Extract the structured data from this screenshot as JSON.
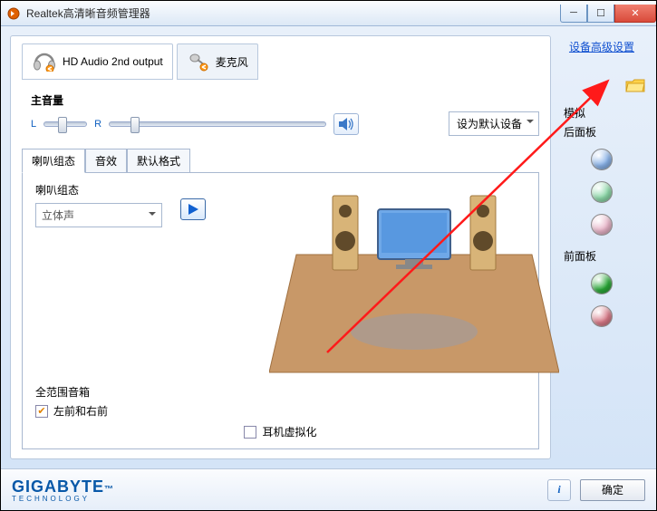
{
  "window": {
    "title": "Realtek高清晰音频管理器"
  },
  "topTabs": {
    "output": "HD Audio 2nd output",
    "mic": "麦克风"
  },
  "mainVolume": {
    "label": "主音量",
    "L": "L",
    "R": "R",
    "balancePos": 0.4,
    "mainPos": 0.1,
    "defaultDeviceBtn": "设为默认设备"
  },
  "subTabs": {
    "t1": "喇叭组态",
    "t2": "音效",
    "t3": "默认格式"
  },
  "speakerConfig": {
    "label": "喇叭组态",
    "selectValue": "立体声",
    "surroundBoxLabel": "全范围音箱",
    "surroundChk": "左前和右前",
    "hpVirt": "耳机虚拟化"
  },
  "side": {
    "advLink": "设备高级设置",
    "analog": "模拟",
    "backPanel": "后面板",
    "frontPanel": "前面板",
    "jacks": {
      "back": [
        "#89b2e8",
        "#8cd8a8",
        "#e8b4c8"
      ],
      "front": [
        "#2aa838",
        "#d87a88"
      ]
    }
  },
  "brand": {
    "name": "GIGABYTE",
    "sub": "TECHNOLOGY",
    "trademark": "™"
  },
  "footer": {
    "ok": "确定"
  },
  "colors": {
    "accentBlue": "#1060c0",
    "arrowRed": "#ff1a1a"
  }
}
